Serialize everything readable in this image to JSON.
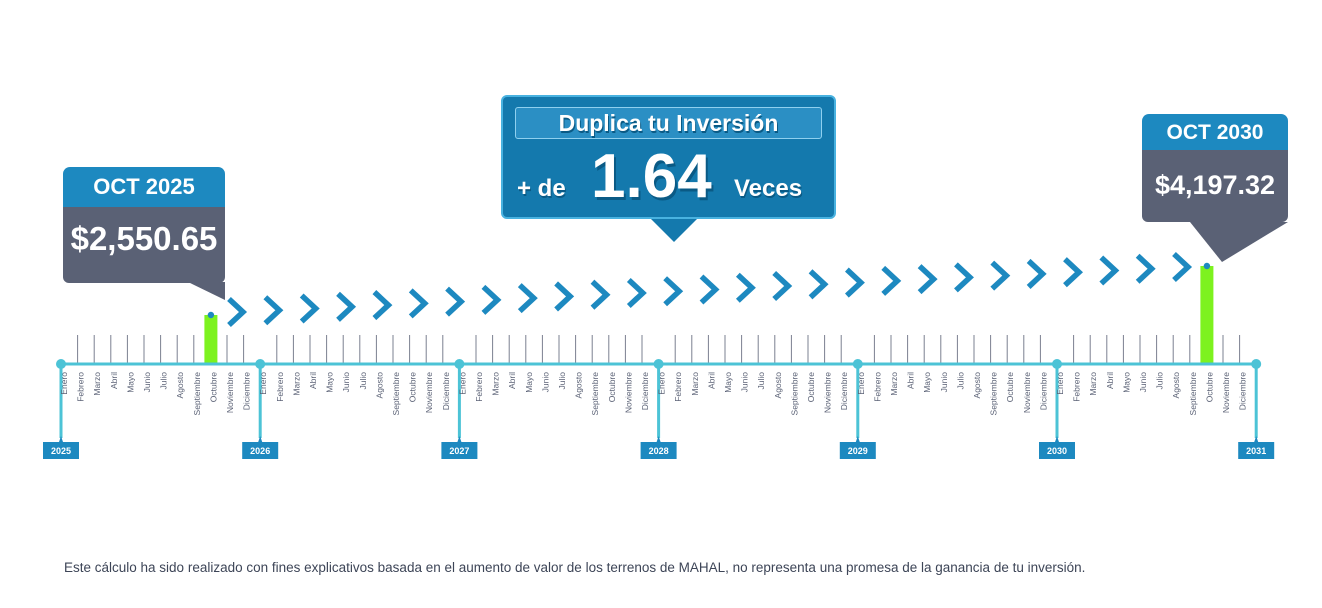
{
  "start": {
    "date": "OCT 2025",
    "amount": "$2,550.65"
  },
  "end": {
    "date": "OCT 2030",
    "amount": "$4,197.32"
  },
  "headline": {
    "title": "Duplica tu Inversión",
    "prefix": "+ de",
    "multiplier": "1.64",
    "suffix": "Veces"
  },
  "timeline": {
    "years": [
      "2025",
      "2026",
      "2027",
      "2028",
      "2029",
      "2030",
      "2031"
    ],
    "months": [
      "Enero",
      "Febrero",
      "Marzo",
      "Abril",
      "Mayo",
      "Junio",
      "Julio",
      "Agosto",
      "Septiembre",
      "Octubre",
      "Noviembre",
      "Diciembre"
    ],
    "highlight_start": {
      "year": "2025",
      "month": "Octubre"
    },
    "highlight_end": {
      "year": "2030",
      "month": "Octubre"
    }
  },
  "colors": {
    "line": "#4cc3d6",
    "highlight": "#7df21f",
    "chevron": "#1d89c0",
    "year_tab": "#1d89c0",
    "callout_head": "#1d89c0",
    "callout_body": "#5a6175"
  },
  "disclaimer": "Este cálculo ha sido realizado con fines explicativos basada en el aumento de valor de los terrenos de MAHAL, no representa una promesa de la ganancia de tu inversión."
}
